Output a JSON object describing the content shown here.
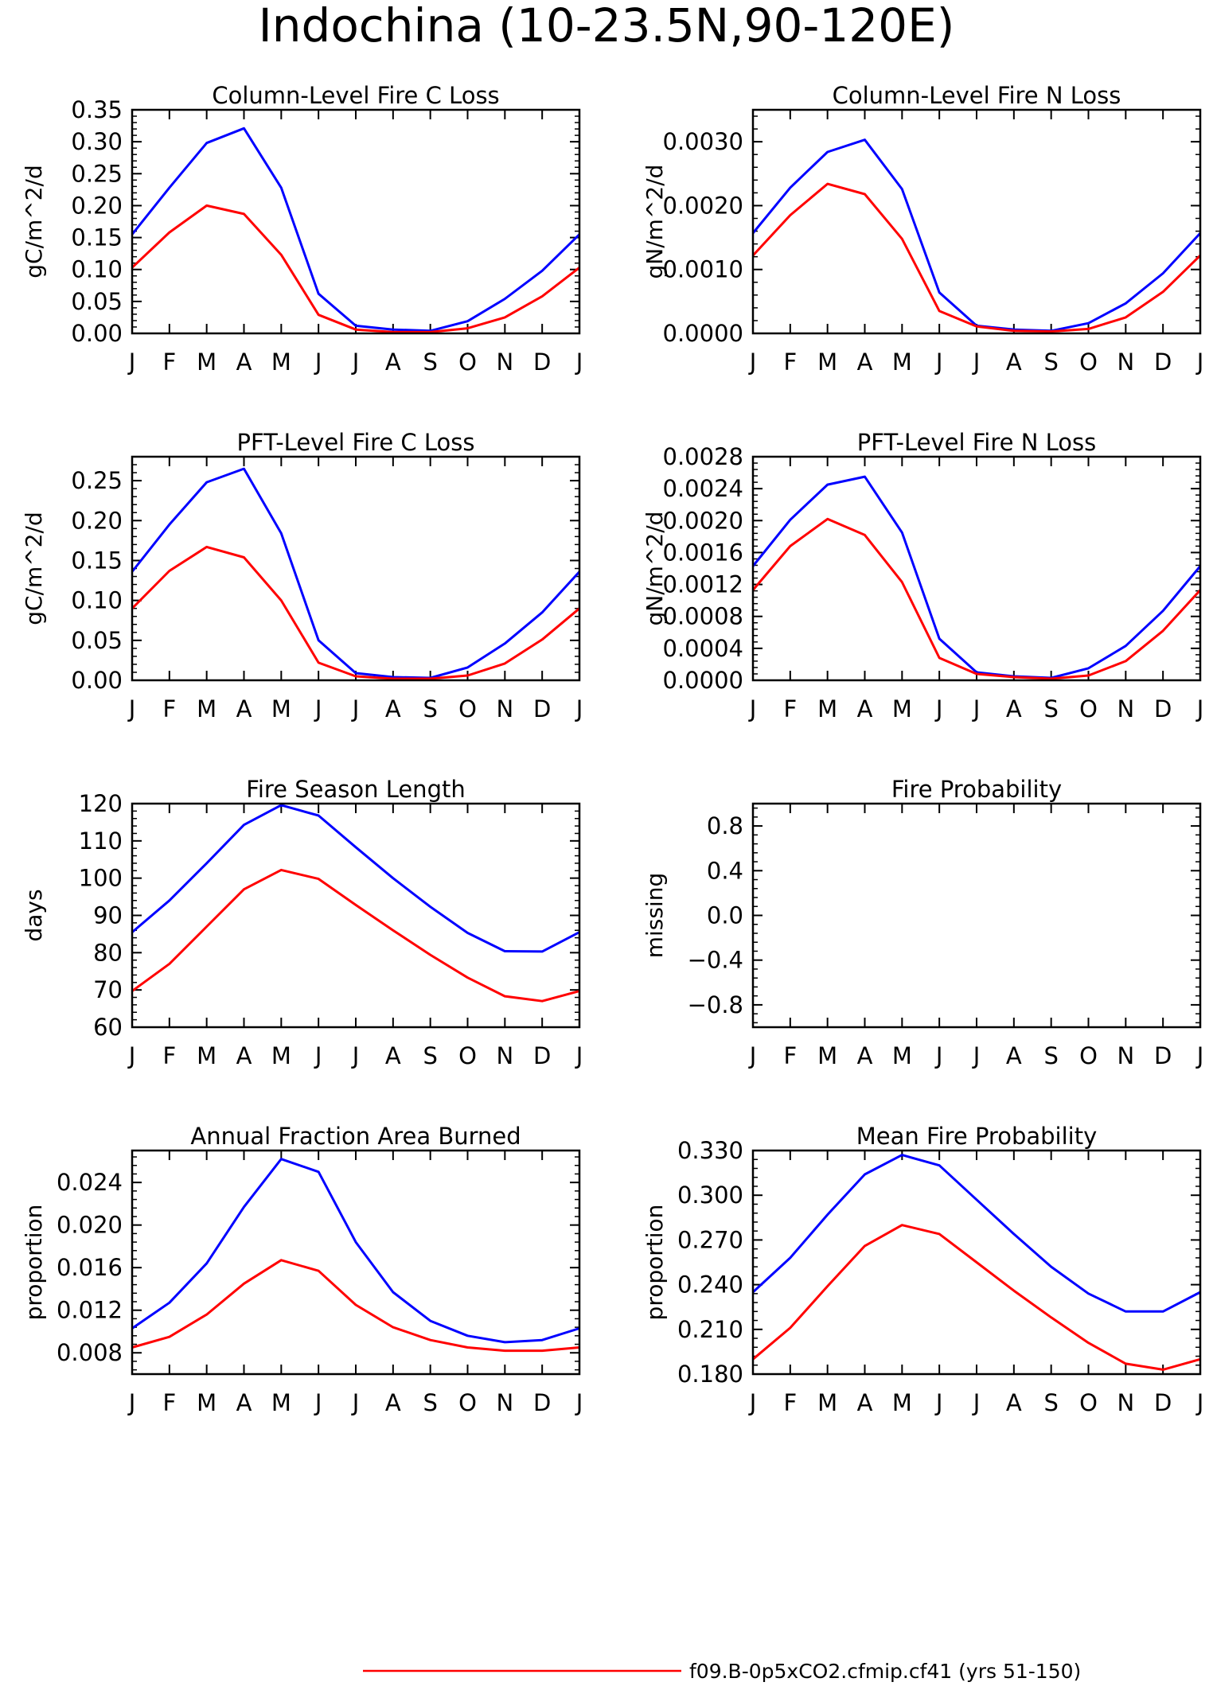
{
  "page_title": "Indochina (10-23.5N,90-120E)",
  "colors": {
    "red": "#ff0000",
    "blue": "#0000ff"
  },
  "legend": [
    {
      "text": "f09.B-0p5xCO2.cfmip.cf41 (yrs 51-150)",
      "color": "#ff0000"
    }
  ],
  "chart_data": [
    {
      "type": "line",
      "title": "Column-Level Fire C Loss",
      "ylabel": "gC/m^2/d",
      "x": [
        "J",
        "F",
        "M",
        "A",
        "M",
        "J",
        "J",
        "A",
        "S",
        "O",
        "N",
        "D",
        "J"
      ],
      "ylim": [
        0,
        0.35
      ],
      "yticks": [
        0,
        0.05,
        0.1,
        0.15,
        0.2,
        0.25,
        0.3,
        0.35
      ],
      "ytick_labels": [
        "0.00",
        "0.05",
        "0.10",
        "0.15",
        "0.20",
        "0.25",
        "0.30",
        "0.35"
      ],
      "series": [
        {
          "color": "#0000ff",
          "values": [
            0.155,
            0.228,
            0.298,
            0.321,
            0.228,
            0.062,
            0.012,
            0.006,
            0.004,
            0.019,
            0.054,
            0.098,
            0.155
          ]
        },
        {
          "color": "#ff0000",
          "values": [
            0.103,
            0.158,
            0.2,
            0.187,
            0.123,
            0.029,
            0.006,
            0.002,
            0.002,
            0.008,
            0.025,
            0.058,
            0.103
          ]
        }
      ]
    },
    {
      "type": "line",
      "title": "Column-Level Fire N Loss",
      "ylabel": "gN/m^2/d",
      "x": [
        "J",
        "F",
        "M",
        "A",
        "M",
        "J",
        "J",
        "A",
        "S",
        "O",
        "N",
        "D",
        "J"
      ],
      "ylim": [
        0,
        0.0035
      ],
      "yticks": [
        0,
        0.001,
        0.002,
        0.003
      ],
      "ytick_labels": [
        "0.0000",
        "0.0010",
        "0.0020",
        "0.0030"
      ],
      "series": [
        {
          "color": "#0000ff",
          "values": [
            0.00157,
            0.00228,
            0.00284,
            0.00303,
            0.00226,
            0.00064,
            0.00012,
            6e-05,
            4e-05,
            0.00016,
            0.00047,
            0.00094,
            0.00157
          ]
        },
        {
          "color": "#ff0000",
          "values": [
            0.00122,
            0.00185,
            0.00234,
            0.00218,
            0.00148,
            0.00035,
            0.00011,
            4e-05,
            3e-05,
            7e-05,
            0.00025,
            0.00065,
            0.00122
          ]
        }
      ]
    },
    {
      "type": "line",
      "title": "PFT-Level Fire C Loss",
      "ylabel": "gC/m^2/d",
      "x": [
        "J",
        "F",
        "M",
        "A",
        "M",
        "J",
        "J",
        "A",
        "S",
        "O",
        "N",
        "D",
        "J"
      ],
      "ylim": [
        0,
        0.28
      ],
      "yticks": [
        0,
        0.05,
        0.1,
        0.15,
        0.2,
        0.25
      ],
      "ytick_labels": [
        "0.00",
        "0.05",
        "0.10",
        "0.15",
        "0.20",
        "0.25"
      ],
      "series": [
        {
          "color": "#0000ff",
          "values": [
            0.136,
            0.195,
            0.248,
            0.265,
            0.184,
            0.05,
            0.009,
            0.004,
            0.003,
            0.016,
            0.046,
            0.085,
            0.136
          ]
        },
        {
          "color": "#ff0000",
          "values": [
            0.09,
            0.137,
            0.167,
            0.154,
            0.1,
            0.022,
            0.005,
            0.002,
            0.002,
            0.006,
            0.021,
            0.051,
            0.09
          ]
        }
      ]
    },
    {
      "type": "line",
      "title": "PFT-Level Fire N Loss",
      "ylabel": "gN/m^2/d",
      "x": [
        "J",
        "F",
        "M",
        "A",
        "M",
        "J",
        "J",
        "A",
        "S",
        "O",
        "N",
        "D",
        "J"
      ],
      "ylim": [
        0,
        0.0028
      ],
      "yticks": [
        0,
        0.0004,
        0.0008,
        0.0012,
        0.0016,
        0.002,
        0.0024,
        0.0028
      ],
      "ytick_labels": [
        "0.0000",
        "0.0004",
        "0.0008",
        "0.0012",
        "0.0016",
        "0.0020",
        "0.0024",
        "0.0028"
      ],
      "series": [
        {
          "color": "#0000ff",
          "values": [
            0.00143,
            0.00201,
            0.00245,
            0.00255,
            0.00185,
            0.00052,
            0.0001,
            5e-05,
            3e-05,
            0.00015,
            0.00043,
            0.00087,
            0.00143
          ]
        },
        {
          "color": "#ff0000",
          "values": [
            0.00113,
            0.00168,
            0.00202,
            0.00182,
            0.00123,
            0.00028,
            8e-05,
            4e-05,
            2e-05,
            6e-05,
            0.00024,
            0.00062,
            0.00113
          ]
        }
      ]
    },
    {
      "type": "line",
      "title": "Fire Season Length",
      "ylabel": "days",
      "x": [
        "J",
        "F",
        "M",
        "A",
        "M",
        "J",
        "J",
        "A",
        "S",
        "O",
        "N",
        "D",
        "J"
      ],
      "ylim": [
        60,
        120
      ],
      "yticks": [
        60,
        70,
        80,
        90,
        100,
        110,
        120
      ],
      "ytick_labels": [
        "60",
        "70",
        "80",
        "90",
        "100",
        "110",
        "120"
      ],
      "series": [
        {
          "color": "#0000ff",
          "values": [
            85.5,
            94.0,
            104.0,
            114.3,
            119.6,
            116.8,
            108.3,
            100.0,
            92.3,
            85.3,
            80.4,
            80.3,
            85.5
          ]
        },
        {
          "color": "#ff0000",
          "values": [
            69.7,
            77.0,
            87.0,
            97.0,
            102.2,
            99.8,
            92.8,
            86.0,
            79.4,
            73.3,
            68.3,
            67.0,
            69.7
          ]
        }
      ]
    },
    {
      "type": "line",
      "title": "Fire Probability",
      "ylabel": "missing",
      "x": [
        "J",
        "F",
        "M",
        "A",
        "M",
        "J",
        "J",
        "A",
        "S",
        "O",
        "N",
        "D",
        "J"
      ],
      "ylim": [
        -1.0,
        1.0
      ],
      "yticks": [
        -0.8,
        -0.4,
        0.0,
        0.4,
        0.8
      ],
      "ytick_labels": [
        "-0.8",
        "-0.4",
        "0.0",
        "0.4",
        "0.8"
      ],
      "series": []
    },
    {
      "type": "line",
      "title": "Annual Fraction Area Burned",
      "ylabel": "proportion",
      "x": [
        "J",
        "F",
        "M",
        "A",
        "M",
        "J",
        "J",
        "A",
        "S",
        "O",
        "N",
        "D",
        "J"
      ],
      "ylim": [
        0.006,
        0.027
      ],
      "yticks": [
        0.008,
        0.012,
        0.016,
        0.02,
        0.024
      ],
      "ytick_labels": [
        "0.008",
        "0.012",
        "0.016",
        "0.020",
        "0.024"
      ],
      "series": [
        {
          "color": "#0000ff",
          "values": [
            0.0103,
            0.0127,
            0.0164,
            0.0217,
            0.0262,
            0.025,
            0.0184,
            0.0137,
            0.011,
            0.0096,
            0.009,
            0.0092,
            0.0103
          ]
        },
        {
          "color": "#ff0000",
          "values": [
            0.0085,
            0.0095,
            0.0116,
            0.0145,
            0.0167,
            0.0157,
            0.0125,
            0.0104,
            0.0092,
            0.0085,
            0.0082,
            0.0082,
            0.0085
          ]
        }
      ]
    },
    {
      "type": "line",
      "title": "Mean Fire Probability",
      "ylabel": "proportion",
      "x": [
        "J",
        "F",
        "M",
        "A",
        "M",
        "J",
        "J",
        "A",
        "S",
        "O",
        "N",
        "D",
        "J"
      ],
      "ylim": [
        0.18,
        0.33
      ],
      "yticks": [
        0.18,
        0.21,
        0.24,
        0.27,
        0.3,
        0.33
      ],
      "ytick_labels": [
        "0.180",
        "0.210",
        "0.240",
        "0.270",
        "0.300",
        "0.330"
      ],
      "series": [
        {
          "color": "#0000ff",
          "values": [
            0.235,
            0.258,
            0.287,
            0.314,
            0.327,
            0.32,
            0.297,
            0.274,
            0.252,
            0.234,
            0.222,
            0.222,
            0.235
          ]
        },
        {
          "color": "#ff0000",
          "values": [
            0.19,
            0.211,
            0.239,
            0.266,
            0.28,
            0.274,
            0.255,
            0.236,
            0.218,
            0.201,
            0.187,
            0.183,
            0.19
          ]
        }
      ]
    }
  ]
}
